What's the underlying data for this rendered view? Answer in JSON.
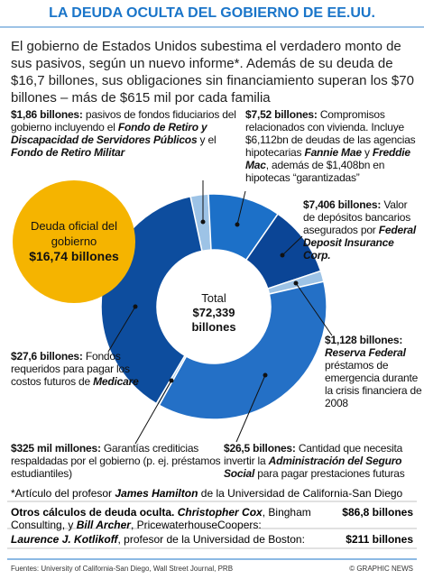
{
  "chart_data": {
    "type": "pie",
    "title": "LA DEUDA OCULTA DEL GOBIERNO DE EE.UU.",
    "subtitle": "El gobierno de Estados Unidos subestima el verdadero monto de sus pasivos, según un nuevo informe*. Además de su deuda de $16,7 billones, sus obligaciones sin financiamiento superan los $70 billones – más de $615 mil por cada familia",
    "values": [
      1.86,
      7.52,
      7.406,
      1.128,
      26.5,
      0.325,
      27.6
    ],
    "value_labels": [
      "$1,86 billones",
      "$7,52 billones",
      "$7,406 billones",
      "$1,128 billones",
      "$26,5 billones",
      "$325 mil millones",
      "$27,6 billones"
    ],
    "colors": [
      "#9dc3e6",
      "#1c70c8",
      "#0b4596",
      "#9dc3e6",
      "#2470c6",
      "#9dc3e6",
      "#0d4d9e"
    ],
    "descriptions": [
      [
        {
          "text": ": ",
          "style": "b"
        },
        {
          "text": "pasivos de fondos fiduciarios del gobierno incluyendo el "
        },
        {
          "text": "Fondo de Retiro y Discapacidad de Servidores Públicos",
          "style": "bi"
        },
        {
          "text": " y el "
        },
        {
          "text": "Fondo de Retiro Militar",
          "style": "bi"
        }
      ],
      [
        {
          "text": ": ",
          "style": "b"
        },
        {
          "text": "Compromisos relacionados con vivienda. Incluye $6,112bn de deudas de las agencias hipotecarias "
        },
        {
          "text": "Fannie Mae",
          "style": "bi"
        },
        {
          "text": " y "
        },
        {
          "text": "Freddie Mac",
          "style": "bi"
        },
        {
          "text": ", además de $1,408bn en hipotecas “garantizadas”"
        }
      ],
      [
        {
          "text": ": ",
          "style": "b"
        },
        {
          "text": "Valor de depósitos bancarios asegurados por "
        },
        {
          "text": "Federal Deposit Insurance Corp.",
          "style": "bi"
        }
      ],
      [
        {
          "text": ": ",
          "style": "b"
        },
        {
          "text": "Reserva Federal",
          "style": "bi"
        },
        {
          "text": " préstamos de emergencia durante la crisis financiera de 2008"
        }
      ],
      [
        {
          "text": ": ",
          "style": "b"
        },
        {
          "text": "Cantidad que necesita invertir la "
        },
        {
          "text": "Administración del Seguro Social",
          "style": "bi"
        },
        {
          "text": " para pagar prestaciones futuras"
        }
      ],
      [
        {
          "text": ": ",
          "style": "b"
        },
        {
          "text": "Garantías crediticias respaldadas por el gobierno (p. ej. préstamos estudiantiles)"
        }
      ],
      [
        {
          "text": ": ",
          "style": "b"
        },
        {
          "text": "Fondos requeridos para pagar los costos futuros de "
        },
        {
          "text": "Medicare",
          "style": "bi"
        }
      ]
    ],
    "center_label": {
      "title": "Total",
      "value": "$72,339",
      "unit": "billones"
    },
    "official_debt": {
      "label": "Deuda oficial del gobierno",
      "value": "$16,74 billones",
      "color": "#f5b400"
    },
    "note": [
      {
        "text": "*Artículo del profesor "
      },
      {
        "text": "James Hamilton",
        "style": "bi"
      },
      {
        "text": " de la Universidad de California-San Diego"
      }
    ],
    "estimates": [
      {
        "source": [
          {
            "text": "Otros cálculos de deuda oculta. ",
            "style": "b"
          },
          {
            "text": "Christopher Cox",
            "style": "bi"
          },
          {
            "text": ", Bingham Consulting, y "
          },
          {
            "text": "Bill Archer",
            "style": "bi"
          },
          {
            "text": ", PricewaterhouseCoopers:"
          }
        ],
        "value": "$86,8 billones"
      },
      {
        "source": [
          {
            "text": "Laurence J. Kotlikoff",
            "style": "bi"
          },
          {
            "text": ", profesor de la Universidad de Boston:"
          }
        ],
        "value": "$211 billones"
      }
    ],
    "source": "Fuentes: University of California-San Diego, Wall Street Journal, PRB",
    "credit": "© GRAPHIC NEWS"
  }
}
